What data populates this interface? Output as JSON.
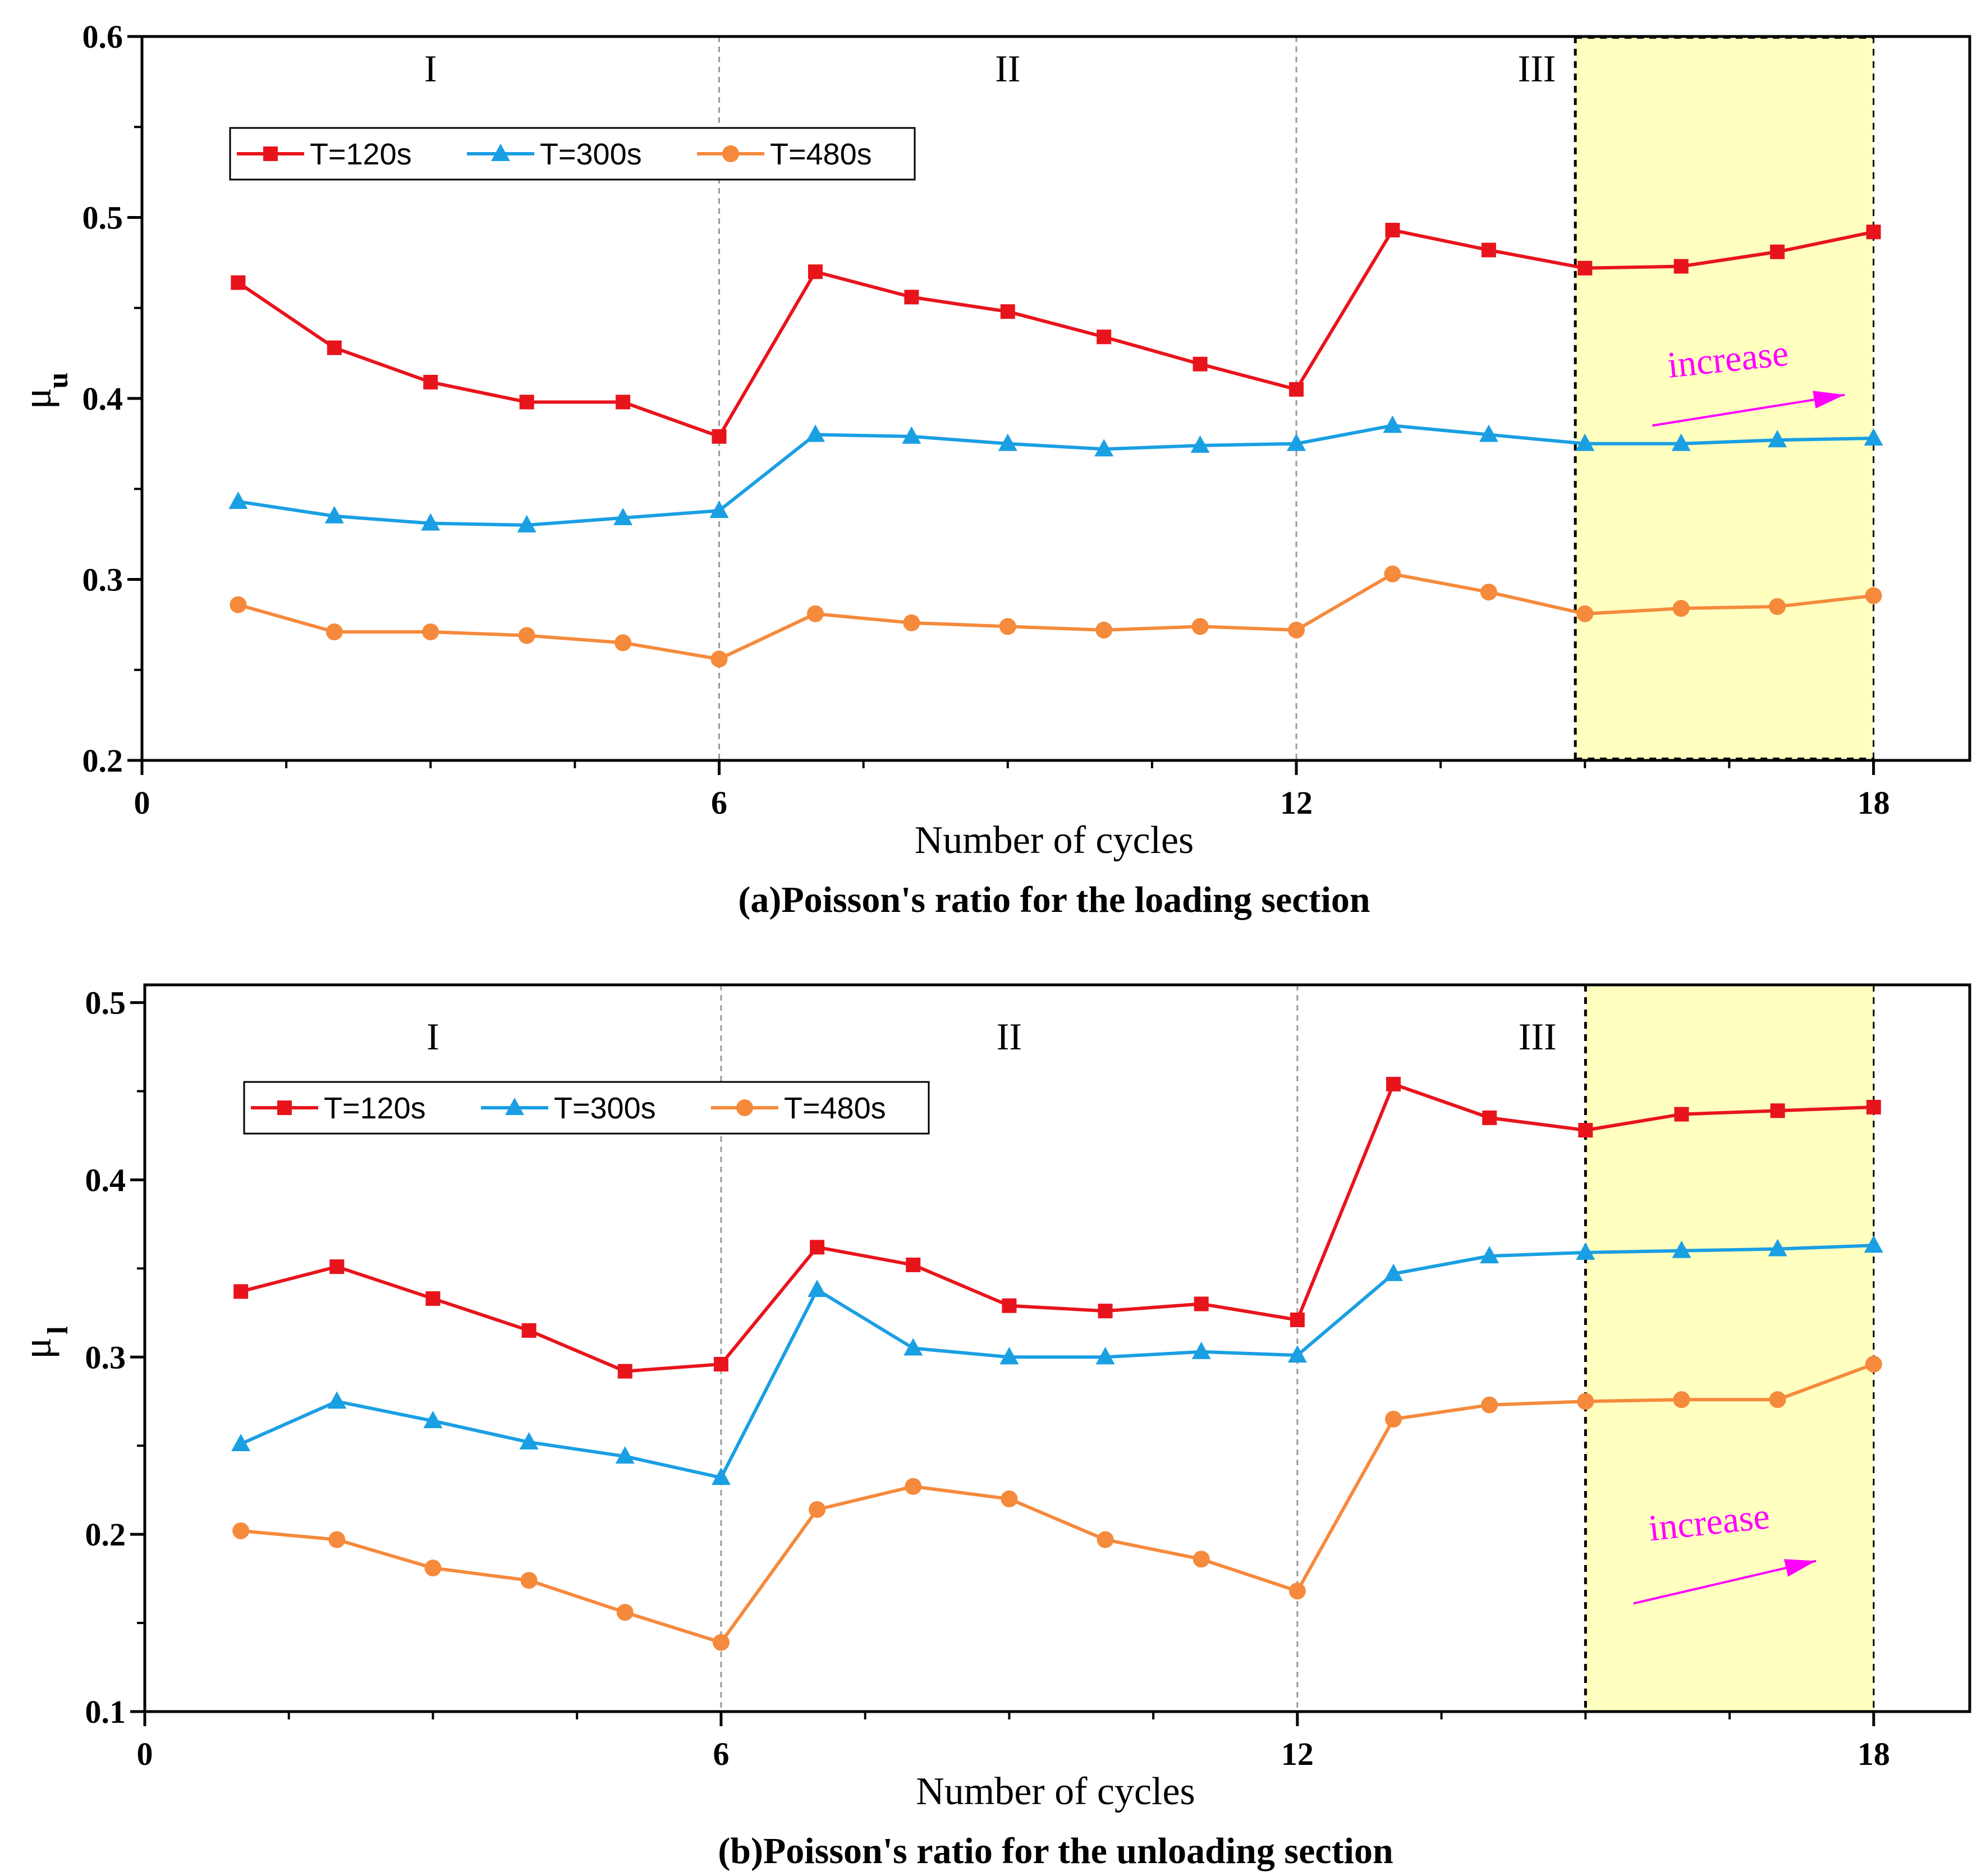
{
  "colors": {
    "series": [
      "#e8141c",
      "#1a9fe3",
      "#f58a3c"
    ],
    "highlight": "#ffffc0",
    "annotation": "#ff00ff"
  },
  "chart_data": [
    {
      "type": "line",
      "id": "a",
      "title": "(a)Poisson's ratio for the loading section",
      "xlabel": "Number of cycles",
      "ylabel": "μ",
      "ylabel_sub": "u",
      "xlim": [
        0,
        19
      ],
      "ylim": [
        0.2,
        0.6
      ],
      "x_ticks": [
        0,
        6,
        12,
        18
      ],
      "y_ticks": [
        0.2,
        0.3,
        0.4,
        0.5,
        0.6
      ],
      "y_tick_labels": [
        "0.2",
        "0.3",
        "0.4",
        "0.5",
        "0.6"
      ],
      "regions": [
        {
          "label": "I",
          "x": 3
        },
        {
          "label": "II",
          "x": 9
        },
        {
          "label": "III",
          "x": 14.5
        }
      ],
      "dividers": [
        6,
        12
      ],
      "highlight_range": [
        14.9,
        18
      ],
      "annotation": {
        "text": "increase",
        "x0": 15.7,
        "y0": 0.385,
        "x1": 17.7,
        "y1": 0.402,
        "text_x": 16.5,
        "text_y": 0.415
      },
      "x": [
        1,
        2,
        3,
        4,
        5,
        6,
        7,
        8,
        9,
        10,
        11,
        12,
        13,
        14,
        15,
        16,
        17,
        18
      ],
      "series": [
        {
          "name": "T=120s",
          "marker": "square",
          "values": [
            0.464,
            0.428,
            0.409,
            0.398,
            0.398,
            0.379,
            0.47,
            0.456,
            0.448,
            0.434,
            0.419,
            0.405,
            0.493,
            0.482,
            0.472,
            0.473,
            0.481,
            0.492
          ]
        },
        {
          "name": "T=300s",
          "marker": "triangle",
          "values": [
            0.343,
            0.335,
            0.331,
            0.33,
            0.334,
            0.338,
            0.38,
            0.379,
            0.375,
            0.372,
            0.374,
            0.375,
            0.385,
            0.38,
            0.375,
            0.375,
            0.377,
            0.378
          ]
        },
        {
          "name": "T=480s",
          "marker": "circle",
          "values": [
            0.286,
            0.271,
            0.271,
            0.269,
            0.265,
            0.256,
            0.281,
            0.276,
            0.274,
            0.272,
            0.274,
            0.272,
            0.303,
            0.293,
            0.281,
            0.284,
            0.285,
            0.291
          ]
        }
      ]
    },
    {
      "type": "line",
      "id": "b",
      "title": "(b)Poisson's ratio for the unloading section",
      "xlabel": "Number of cycles",
      "ylabel": "μ",
      "ylabel_sub": "l",
      "xlim": [
        0,
        19
      ],
      "ylim": [
        0.1,
        0.51
      ],
      "x_ticks": [
        0,
        6,
        12,
        18
      ],
      "y_ticks": [
        0.1,
        0.2,
        0.3,
        0.4,
        0.5
      ],
      "y_tick_labels": [
        "0.1",
        "0.2",
        "0.3",
        "0.4",
        "0.5"
      ],
      "regions": [
        {
          "label": "I",
          "x": 3
        },
        {
          "label": "II",
          "x": 9
        },
        {
          "label": "III",
          "x": 14.5
        }
      ],
      "dividers": [
        6,
        12
      ],
      "highlight_range": [
        15,
        18
      ],
      "annotation": {
        "text": "increase",
        "x0": 15.5,
        "y0": 0.161,
        "x1": 17.4,
        "y1": 0.185,
        "text_x": 16.3,
        "text_y": 0.2
      },
      "x": [
        1,
        2,
        3,
        4,
        5,
        6,
        7,
        8,
        9,
        10,
        11,
        12,
        13,
        14,
        15,
        16,
        17,
        18
      ],
      "series": [
        {
          "name": "T=120s",
          "marker": "square",
          "values": [
            0.337,
            0.351,
            0.333,
            0.315,
            0.292,
            0.296,
            0.362,
            0.352,
            0.329,
            0.326,
            0.33,
            0.321,
            0.454,
            0.435,
            0.428,
            0.437,
            0.439,
            0.441
          ]
        },
        {
          "name": "T=300s",
          "marker": "triangle",
          "values": [
            0.251,
            0.275,
            0.264,
            0.252,
            0.244,
            0.232,
            0.338,
            0.305,
            0.3,
            0.3,
            0.303,
            0.301,
            0.347,
            0.357,
            0.359,
            0.36,
            0.361,
            0.363
          ]
        },
        {
          "name": "T=480s",
          "marker": "circle",
          "values": [
            0.202,
            0.197,
            0.181,
            0.174,
            0.156,
            0.139,
            0.214,
            0.227,
            0.22,
            0.197,
            0.186,
            0.168,
            0.265,
            0.273,
            0.275,
            0.276,
            0.276,
            0.296
          ]
        }
      ]
    }
  ]
}
